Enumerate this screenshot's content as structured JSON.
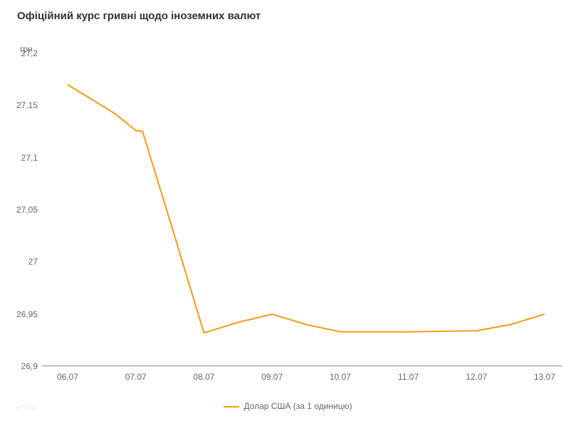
{
  "title": "Офіційний курс гривні щодо іноземних валют",
  "ylabel": "грн",
  "chart": {
    "type": "line",
    "background_color": "#ffffff",
    "line_color": "#f39c12",
    "line_width": 2,
    "axis_color": "#888888",
    "tick_color": "#666666",
    "tick_fontsize": 12,
    "title_color": "#333333",
    "title_fontsize": 15,
    "x_categories": [
      "06.07",
      "07.07",
      "08.07",
      "09.07",
      "10.07",
      "11.07",
      "12.07",
      "13.07"
    ],
    "y_ticks": [
      26.9,
      26.95,
      27,
      27.05,
      27.1,
      27.15,
      27.2
    ],
    "y_tick_labels": [
      "26,9",
      "26,95",
      "27",
      "27,05",
      "27,1",
      "27,15",
      "27,2"
    ],
    "ylim": [
      26.9,
      27.2
    ],
    "series": [
      {
        "name": "Долар США (за 1 одиницю)",
        "color": "#f39c12",
        "points": [
          [
            0.0,
            27.17
          ],
          [
            0.7,
            27.142
          ],
          [
            1.0,
            27.126
          ],
          [
            1.1,
            27.125
          ],
          [
            1.5,
            27.04
          ],
          [
            2.0,
            26.932
          ],
          [
            2.5,
            26.942
          ],
          [
            3.0,
            26.95
          ],
          [
            3.5,
            26.94
          ],
          [
            4.0,
            26.933
          ],
          [
            5.0,
            26.933
          ],
          [
            6.0,
            26.934
          ],
          [
            6.5,
            26.94
          ],
          [
            7.0,
            26.95
          ]
        ]
      }
    ]
  },
  "legend": {
    "label": "Долар США (за 1 одиницю)",
    "color": "#f39c12"
  }
}
